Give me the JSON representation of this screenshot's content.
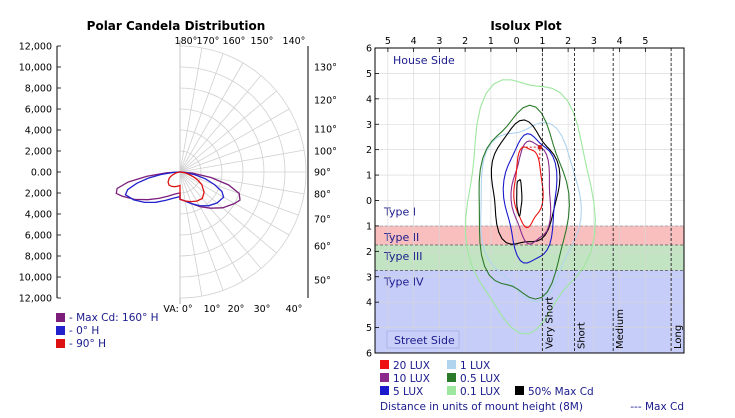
{
  "chart_data": [
    {
      "type": "polar",
      "title": "Polar Candela Distribution",
      "y_tick_labels": [
        "12,000",
        "10,000",
        "8,000",
        "6,000",
        "4,000",
        "2,000",
        "0.00",
        "2,000",
        "4,000",
        "6,000",
        "8,000",
        "10,000",
        "12,000"
      ],
      "top_angle_labels": [
        "180°",
        "170°",
        "160°",
        "150°",
        "140°"
      ],
      "right_angle_labels": [
        "130°",
        "120°",
        "110°",
        "100°",
        "90°",
        "80°",
        "70°",
        "60°",
        "50°"
      ],
      "bottom_angle_labels": [
        "VA: 0°",
        "10°",
        "20°",
        "30°",
        "40°"
      ],
      "radial_max": 12000,
      "series": [
        {
          "name": "- Max Cd: 160° H",
          "color": "#7b1f7b",
          "va": [
            0,
            10,
            20,
            30,
            40,
            50,
            60,
            65,
            70,
            75,
            80,
            85,
            90
          ],
          "candela": [
            2600,
            2800,
            3200,
            3800,
            4500,
            5300,
            6000,
            6300,
            6000,
            4800,
            3000,
            1200,
            100
          ]
        },
        {
          "name": "- 0° H",
          "color": "#2222cc",
          "va": [
            0,
            10,
            20,
            30,
            40,
            50,
            60,
            65,
            70,
            75,
            80,
            85,
            90
          ],
          "candela": [
            2600,
            2800,
            3200,
            3700,
            4200,
            4600,
            4800,
            4400,
            3500,
            2500,
            1400,
            500,
            50
          ]
        },
        {
          "name": "- 90° H",
          "color": "#dd1111",
          "va": [
            0,
            10,
            20,
            30,
            40,
            50,
            60,
            65,
            70,
            75,
            80,
            85,
            90
          ],
          "candela": [
            2600,
            2800,
            3000,
            3200,
            3300,
            3000,
            2400,
            1900,
            1400,
            900,
            500,
            200,
            20
          ]
        }
      ]
    },
    {
      "type": "isolux",
      "title": "Isolux Plot",
      "x_tick_labels": [
        "5",
        "4",
        "3",
        "2",
        "1",
        "0",
        "1",
        "2",
        "3",
        "4",
        "5"
      ],
      "y_tick_labels": [
        "6",
        "5",
        "4",
        "3",
        "2",
        "1",
        "0",
        "1",
        "2",
        "3",
        "4",
        "5",
        "6"
      ],
      "house_side_label": "House Side",
      "street_side_label": "Street Side",
      "zones": [
        {
          "label": "Type I",
          "from": 0,
          "to": 1,
          "color": "#ffffff"
        },
        {
          "label": "Type II",
          "from": 1,
          "to": 1.75,
          "color": "#f8b4b4"
        },
        {
          "label": "Type III",
          "from": 1.75,
          "to": 2.75,
          "color": "#b9dfb9"
        },
        {
          "label": "Type IV",
          "from": 2.75,
          "to": 6,
          "color": "#bcc4f7"
        }
      ],
      "vertical_zones": [
        {
          "label": "Very Short",
          "x": 1
        },
        {
          "label": "Short",
          "x": 2.25
        },
        {
          "label": "Medium",
          "x": 3.75
        },
        {
          "label": "Long",
          "x": 6
        }
      ],
      "legend": [
        {
          "label": "20 LUX",
          "color": "#ee1111"
        },
        {
          "label": "1 LUX",
          "color": "#b0d4ee"
        },
        {
          "label": "10 LUX",
          "color": "#8a2a8a"
        },
        {
          "label": "0.5 LUX",
          "color": "#2a7a2a"
        },
        {
          "label": "5 LUX",
          "color": "#1a1acc"
        },
        {
          "label": "0.1 LUX",
          "color": "#9ee79e"
        },
        {
          "label": "50% Max Cd",
          "color": "#000000"
        }
      ],
      "xlabel": "Distance in units of mount height (8M)",
      "max_cd_label": "--- Max Cd",
      "max_cd_point": [
        0.9,
        -2.1
      ],
      "contours": [
        {
          "name": "0.1 LUX",
          "color": "#9ee79e",
          "cx": 0.45,
          "cy": 0.05,
          "rx": 2.45,
          "ry": 4.9
        },
        {
          "name": "1 LUX",
          "color": "#b0d4ee",
          "cx": 0.5,
          "cy": 0.3,
          "rx": 1.95,
          "ry": 3.4
        },
        {
          "name": "0.5 LUX",
          "color": "#2a7a2a",
          "cx": 0.25,
          "cy": 0.2,
          "rx": 1.75,
          "ry": 3.65
        },
        {
          "name": "50% Max Cd",
          "color": "#000000",
          "cx": 0.3,
          "cy": -0.6,
          "rx": 1.3,
          "ry": 2.4
        },
        {
          "name": "5 LUX",
          "color": "#1a1acc",
          "cx": 0.55,
          "cy": -0.1,
          "rx": 1.0,
          "ry": 2.5
        },
        {
          "name": "10 LUX",
          "color": "#8a2a8a",
          "cx": 0.6,
          "cy": -0.3,
          "rx": 0.75,
          "ry": 2.0
        },
        {
          "name": "20 LUX",
          "color": "#ee1111",
          "cx": 0.45,
          "cy": -0.55,
          "rx": 0.55,
          "ry": 1.55
        },
        {
          "name": "50% Max Cd",
          "color": "#000000",
          "cx": 0.1,
          "cy": -0.15,
          "rx": 0.1,
          "ry": 0.7
        }
      ]
    }
  ]
}
